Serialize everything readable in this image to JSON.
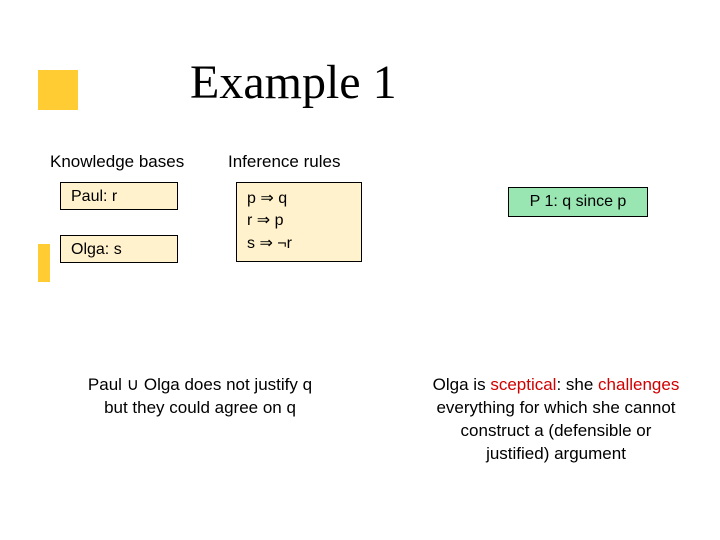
{
  "colors": {
    "accent": "#ffcc33",
    "yellow_box_bg": "#fff2cc",
    "green_box_bg": "#99e6b3",
    "red_text": "#d00000",
    "text": "#000000",
    "background": "#ffffff",
    "border": "#000000"
  },
  "title": "Example 1",
  "headers": {
    "kb": "Knowledge bases",
    "ir": "Inference rules"
  },
  "kb": {
    "paul": "Paul: r",
    "olga": "Olga: s"
  },
  "rules": {
    "line1_left": "p ",
    "line1_right": " q",
    "line2_left": "r ",
    "line2_right": " p",
    "line3_left": "s ",
    "line3_right_neg": " ¬r",
    "implies": "⇒"
  },
  "p1": "P 1: q since p",
  "bottom_left": {
    "line1_a": "Paul ",
    "line1_cup": "∪",
    "line1_b": " Olga does not justify q",
    "line2": "but they could agree on q"
  },
  "bottom_right": {
    "l1a": "Olga is ",
    "l1_red": "sceptical",
    "l1b": ": she ",
    "l1_red2": "challenges",
    "l2": "everything for which she cannot",
    "l3": "construct a (defensible or",
    "l4": "justified) argument"
  },
  "typography": {
    "title_fontsize": 48,
    "header_fontsize": 17,
    "body_fontsize": 16,
    "bottom_fontsize": 17
  }
}
